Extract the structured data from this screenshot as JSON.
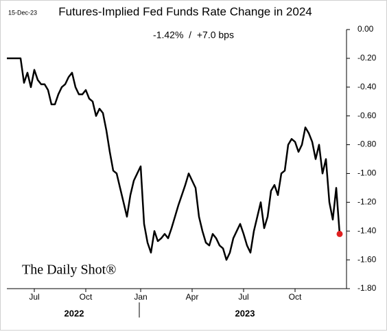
{
  "chart_data": {
    "type": "line",
    "title": "Futures-Implied Fed Funds Rate Change in 2024",
    "date_label": "15-Dec-23",
    "subtitle": "-1.42%  /  +7.0 bps",
    "watermark": "The Daily Shot®",
    "year_labels": [
      "2022",
      "2023"
    ],
    "categories": [
      null,
      null,
      null,
      null,
      null,
      null,
      null,
      null,
      "Jul",
      null,
      null,
      null,
      null,
      null,
      null,
      null,
      null,
      null,
      null,
      null,
      null,
      null,
      null,
      "Oct",
      null,
      null,
      null,
      null,
      null,
      null,
      null,
      null,
      null,
      null,
      null,
      null,
      null,
      null,
      null,
      "Jan",
      null,
      null,
      null,
      null,
      null,
      null,
      null,
      null,
      null,
      null,
      null,
      null,
      null,
      null,
      "Apr",
      null,
      null,
      null,
      null,
      null,
      null,
      null,
      null,
      null,
      null,
      null,
      null,
      null,
      null,
      "Jul",
      null,
      null,
      null,
      null,
      null,
      null,
      null,
      null,
      null,
      null,
      null,
      null,
      null,
      null,
      "Oct",
      null,
      null,
      null,
      null,
      null,
      null,
      null,
      null,
      null,
      null,
      null,
      null,
      null
    ],
    "series": [
      {
        "name": "Futures-implied change",
        "color": "#000000",
        "values": [
          -0.2,
          -0.2,
          -0.2,
          -0.2,
          -0.2,
          -0.37,
          -0.3,
          -0.4,
          -0.28,
          -0.35,
          -0.38,
          -0.38,
          -0.42,
          -0.52,
          -0.52,
          -0.45,
          -0.4,
          -0.38,
          -0.33,
          -0.3,
          -0.4,
          -0.45,
          -0.45,
          -0.42,
          -0.48,
          -0.5,
          -0.6,
          -0.55,
          -0.58,
          -0.7,
          -0.85,
          -0.98,
          -1.0,
          -1.1,
          -1.2,
          -1.3,
          -1.15,
          -1.05,
          -1.0,
          -0.95,
          -1.35,
          -1.48,
          -1.55,
          -1.4,
          -1.47,
          -1.45,
          -1.42,
          -1.45,
          -1.38,
          -1.3,
          -1.22,
          -1.15,
          -1.08,
          -1.0,
          -1.05,
          -1.1,
          -1.3,
          -1.4,
          -1.48,
          -1.5,
          -1.42,
          -1.45,
          -1.5,
          -1.52,
          -1.6,
          -1.55,
          -1.45,
          -1.4,
          -1.35,
          -1.42,
          -1.5,
          -1.55,
          -1.4,
          -1.3,
          -1.2,
          -1.38,
          -1.3,
          -1.12,
          -1.08,
          -1.15,
          -1.0,
          -0.98,
          -0.8,
          -0.76,
          -0.78,
          -0.85,
          -0.8,
          -0.68,
          -0.72,
          -0.78,
          -0.9,
          -0.8,
          -1.0,
          -0.9,
          -1.2,
          -1.32,
          -1.1,
          -1.42
        ]
      }
    ],
    "last_point_color": "#e02020",
    "ylim": [
      -1.8,
      0
    ],
    "yticks": [
      {
        "value": -1.8,
        "label": "-1.80"
      },
      {
        "value": -1.6,
        "label": "-1.60"
      },
      {
        "value": -1.4,
        "label": "-1.40"
      },
      {
        "value": -1.2,
        "label": "-1.20"
      },
      {
        "value": -1.0,
        "label": "-1.00"
      },
      {
        "value": -0.8,
        "label": "-0.80"
      },
      {
        "value": -0.6,
        "label": "-0.60"
      },
      {
        "value": -0.4,
        "label": "-0.40"
      },
      {
        "value": -0.2,
        "label": "-0.20"
      },
      {
        "value": 0,
        "label": "0.00"
      }
    ],
    "grid": false
  }
}
